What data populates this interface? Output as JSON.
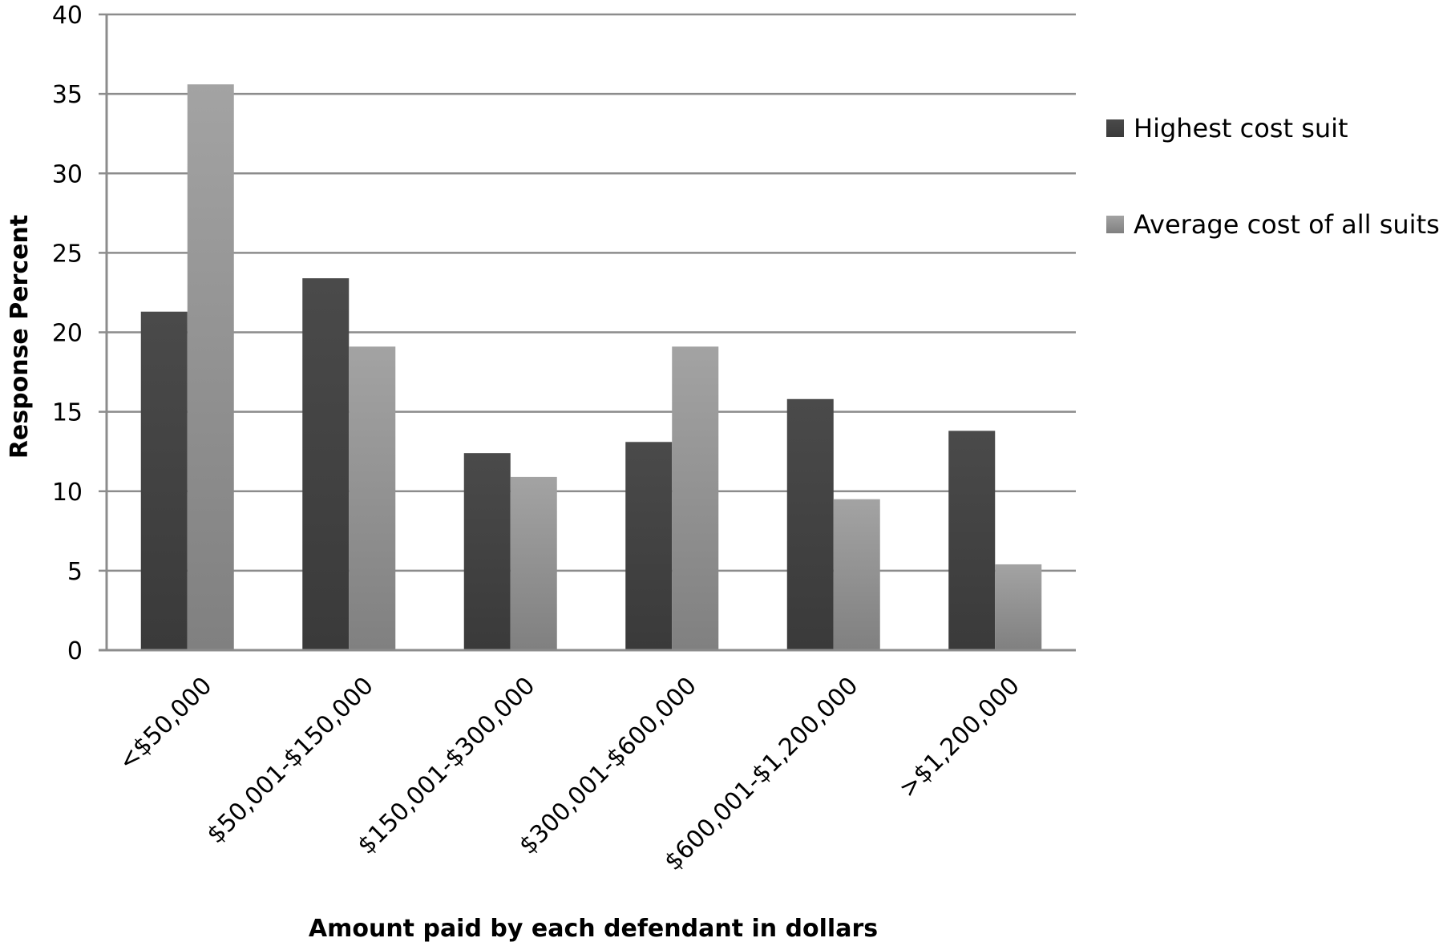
{
  "chart_data": {
    "type": "bar",
    "title": "",
    "xlabel": "Amount paid by each defendant in dollars",
    "ylabel": "Response Percent",
    "ylim": [
      0,
      40
    ],
    "yticks": [
      0,
      5,
      10,
      15,
      20,
      25,
      30,
      35,
      40
    ],
    "grid": true,
    "legend_position": "right",
    "categories": [
      "<$50,000",
      "$50,001-$150,000",
      "$150,001-$300,000",
      "$300,001-$600,000",
      "$600,001-$1,200,000",
      ">$1,200,000"
    ],
    "series": [
      {
        "name": "Highest cost suit",
        "color": "#474747",
        "values": [
          21.3,
          23.4,
          12.4,
          13.1,
          15.8,
          13.8
        ]
      },
      {
        "name": "Average cost of all suits",
        "color": "#9a9a9a",
        "values": [
          35.6,
          19.1,
          10.9,
          19.1,
          9.5,
          5.4
        ]
      }
    ]
  }
}
